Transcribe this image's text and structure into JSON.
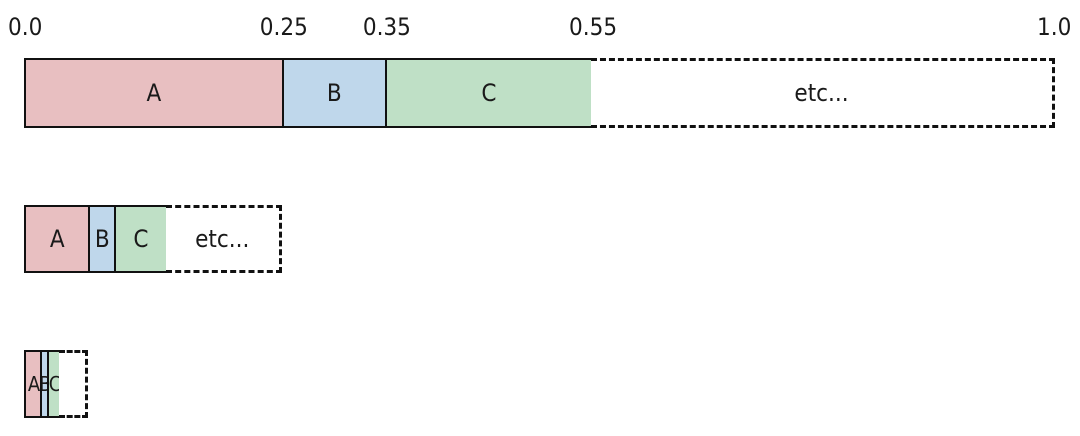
{
  "scale": {
    "ticks": [
      {
        "label": "0.0",
        "value": 0.0
      },
      {
        "label": "0.25",
        "value": 0.25
      },
      {
        "label": "0.35",
        "value": 0.35
      },
      {
        "label": "0.55",
        "value": 0.55
      },
      {
        "label": "1.0",
        "value": 1.0
      }
    ]
  },
  "segment_colors": {
    "A": "#e8bfc1",
    "B": "#bfd7eb",
    "C": "#bfe0c6"
  },
  "bars": [
    {
      "total": 1.0,
      "segments": [
        {
          "label": "A",
          "from": 0.0,
          "to": 0.25,
          "color_key": "A"
        },
        {
          "label": "B",
          "from": 0.25,
          "to": 0.35,
          "color_key": "B"
        },
        {
          "label": "C",
          "from": 0.35,
          "to": 0.55,
          "color_key": "C"
        },
        {
          "label": "etc...",
          "from": 0.55,
          "to": 1.0,
          "style": "dashed"
        }
      ]
    },
    {
      "total": 0.25,
      "segments": [
        {
          "label": "A",
          "from": 0.0,
          "to": 0.0625,
          "color_key": "A"
        },
        {
          "label": "B",
          "from": 0.0625,
          "to": 0.0875,
          "color_key": "B"
        },
        {
          "label": "C",
          "from": 0.0875,
          "to": 0.1375,
          "color_key": "C"
        },
        {
          "label": "etc...",
          "from": 0.1375,
          "to": 0.25,
          "style": "dashed"
        }
      ]
    },
    {
      "total": 0.0625,
      "segments": [
        {
          "label": "A",
          "from": 0.0,
          "to": 0.015625,
          "color_key": "A"
        },
        {
          "label": "B",
          "from": 0.015625,
          "to": 0.021875,
          "color_key": "B"
        },
        {
          "label": "C",
          "from": 0.021875,
          "to": 0.034375,
          "color_key": "C"
        },
        {
          "label": "",
          "from": 0.034375,
          "to": 0.0625,
          "style": "dashed"
        }
      ]
    }
  ]
}
